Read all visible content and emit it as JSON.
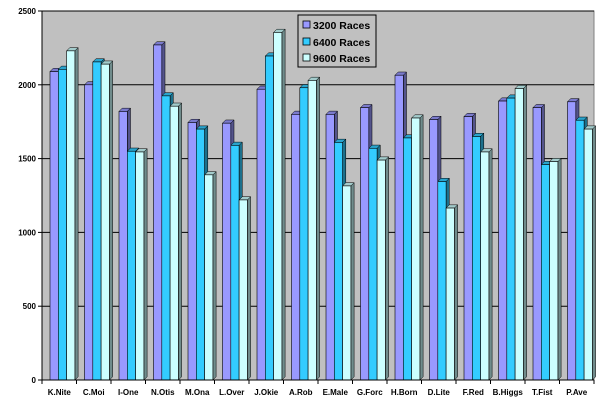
{
  "chart_data": {
    "type": "bar",
    "categories": [
      "K.Nite",
      "C.Moi",
      "I-One",
      "N.Otis",
      "M.Ona",
      "L.Over",
      "J.Okie",
      "A.Rob",
      "E.Male",
      "G.Forc",
      "H.Born",
      "D.Lite",
      "F.Red",
      "B.Higgs",
      "T.Fist",
      "P.Ave"
    ],
    "series": [
      {
        "name": "3200 Races",
        "color": "#9999ff",
        "values": [
          2090,
          2000,
          1820,
          2270,
          1745,
          1740,
          1970,
          1800,
          1800,
          1845,
          2065,
          1765,
          1785,
          1890,
          1845,
          1885
        ]
      },
      {
        "name": "6400 Races",
        "color": "#33ccff",
        "values": [
          2105,
          2155,
          1550,
          1925,
          1700,
          1590,
          2195,
          1980,
          1610,
          1570,
          1640,
          1345,
          1650,
          1910,
          1460,
          1760
        ]
      },
      {
        "name": "9600 Races",
        "color": "#ccffff",
        "values": [
          2230,
          2140,
          1545,
          1855,
          1390,
          1220,
          2355,
          2030,
          1315,
          1490,
          1775,
          1165,
          1545,
          1975,
          1480,
          1700
        ]
      }
    ],
    "yticks": [
      "0",
      "500",
      "1000",
      "1500",
      "2000",
      "2500"
    ],
    "ylim": [
      0,
      2500
    ],
    "grid": true,
    "legend_position": "top-center",
    "plot_background": "#c0c0c0"
  }
}
